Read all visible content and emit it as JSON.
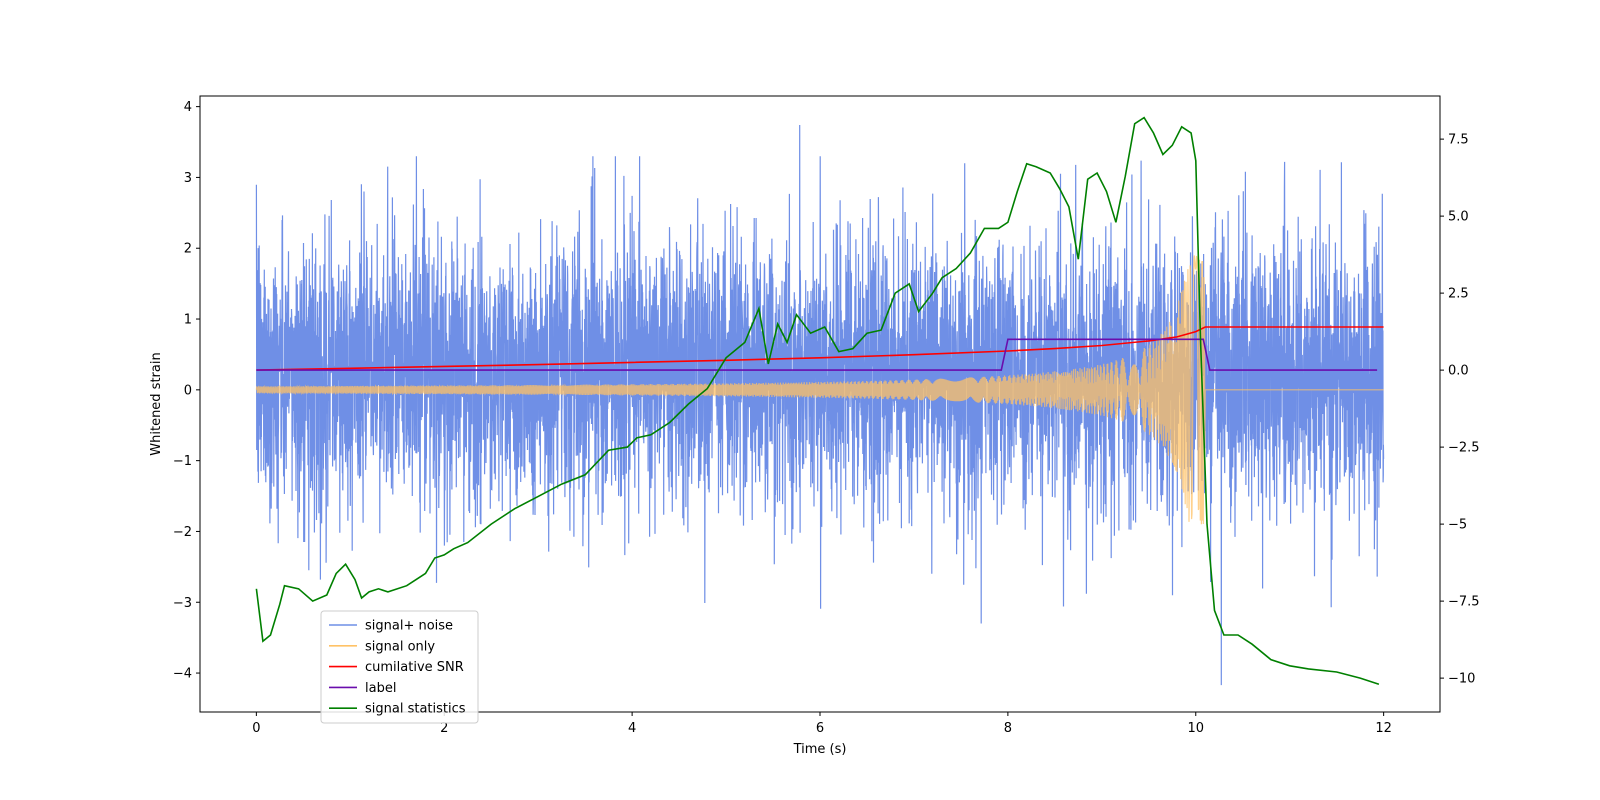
{
  "chart_data": {
    "type": "line",
    "xlabel": "Time (s)",
    "ylabel_left": "Whitened strain",
    "ylabel_right": "",
    "xlim": [
      -0.6,
      12.6
    ],
    "ylim_left": [
      -4.55,
      4.15
    ],
    "ylim_right": [
      -11.1,
      8.9
    ],
    "x_ticks": [
      0,
      2,
      4,
      6,
      8,
      10,
      12
    ],
    "y_ticks_left": [
      -4,
      -3,
      -2,
      -1,
      0,
      1,
      2,
      3,
      4
    ],
    "y_ticks_right": [
      -10.0,
      -7.5,
      -5.0,
      -2.5,
      0.0,
      2.5,
      5.0,
      7.5
    ],
    "legend_position": "lower-left",
    "series": [
      {
        "name": "signal+ noise",
        "axis": "left",
        "color": "#6f8fe6",
        "style": "noisy-envelope",
        "x_range": [
          0,
          12
        ],
        "baseline": 0.25,
        "amplitude_sigma": 0.75,
        "max_value": 3.74,
        "min_value": -4.17
      },
      {
        "name": "signal only",
        "axis": "left",
        "color": "#ffc266",
        "style": "chirp",
        "x_range": [
          0,
          12
        ],
        "merger_time": 10.1,
        "peak_amplitude": 1.9,
        "start_amplitude": 0.05
      },
      {
        "name": "cumilative SNR",
        "axis": "right",
        "color": "#ff0000",
        "x": [
          0,
          1,
          2,
          3,
          4,
          5,
          6,
          7,
          8,
          8.5,
          9,
          9.5,
          9.8,
          10.0,
          10.1,
          10.5,
          11,
          12
        ],
        "y": [
          0.0,
          0.06,
          0.12,
          0.18,
          0.25,
          0.32,
          0.4,
          0.5,
          0.62,
          0.7,
          0.8,
          0.95,
          1.08,
          1.25,
          1.4,
          1.4,
          1.4,
          1.4
        ]
      },
      {
        "name": "label",
        "axis": "right",
        "color": "#6a0dad",
        "x": [
          0,
          7.93,
          8.0,
          10.08,
          10.15,
          11.93
        ],
        "y": [
          0.0,
          0.0,
          1.0,
          1.0,
          0.0,
          0.0
        ]
      },
      {
        "name": "signal statistics",
        "axis": "right",
        "color": "#008000",
        "x": [
          0,
          0.07,
          0.15,
          0.25,
          0.3,
          0.45,
          0.6,
          0.75,
          0.85,
          0.95,
          1.05,
          1.12,
          1.2,
          1.3,
          1.4,
          1.6,
          1.7,
          1.8,
          1.9,
          2.0,
          2.1,
          2.25,
          2.5,
          2.75,
          3.0,
          3.25,
          3.5,
          3.75,
          3.95,
          4.05,
          4.2,
          4.4,
          4.6,
          4.8,
          5.0,
          5.2,
          5.35,
          5.45,
          5.55,
          5.65,
          5.75,
          5.9,
          6.05,
          6.2,
          6.35,
          6.5,
          6.65,
          6.8,
          6.95,
          7.05,
          7.2,
          7.3,
          7.45,
          7.6,
          7.75,
          7.9,
          8.0,
          8.1,
          8.2,
          8.3,
          8.45,
          8.55,
          8.65,
          8.75,
          8.85,
          8.95,
          9.05,
          9.15,
          9.25,
          9.35,
          9.45,
          9.55,
          9.65,
          9.75,
          9.85,
          9.95,
          10.0,
          10.05,
          10.12,
          10.2,
          10.3,
          10.45,
          10.6,
          10.8,
          11.0,
          11.2,
          11.5,
          11.75,
          11.95
        ],
        "y": [
          -7.1,
          -8.8,
          -8.6,
          -7.6,
          -7.0,
          -7.1,
          -7.5,
          -7.3,
          -6.6,
          -6.3,
          -6.8,
          -7.4,
          -7.2,
          -7.1,
          -7.2,
          -7.0,
          -6.8,
          -6.6,
          -6.1,
          -6.0,
          -5.8,
          -5.6,
          -5.0,
          -4.5,
          -4.1,
          -3.7,
          -3.4,
          -2.6,
          -2.5,
          -2.2,
          -2.1,
          -1.7,
          -1.1,
          -0.6,
          0.4,
          0.9,
          2.0,
          0.2,
          1.5,
          0.9,
          1.8,
          1.2,
          1.4,
          0.6,
          0.7,
          1.2,
          1.3,
          2.5,
          2.8,
          1.9,
          2.5,
          3.0,
          3.3,
          3.8,
          4.6,
          4.6,
          4.8,
          5.8,
          6.7,
          6.6,
          6.4,
          5.9,
          5.3,
          3.6,
          6.2,
          6.4,
          5.8,
          4.8,
          6.3,
          8.0,
          8.2,
          7.7,
          7.0,
          7.3,
          7.9,
          7.7,
          6.8,
          1.0,
          -5.0,
          -7.8,
          -8.6,
          -8.6,
          -8.9,
          -9.4,
          -9.6,
          -9.7,
          -9.8,
          -10.0,
          -10.2
        ]
      }
    ]
  }
}
